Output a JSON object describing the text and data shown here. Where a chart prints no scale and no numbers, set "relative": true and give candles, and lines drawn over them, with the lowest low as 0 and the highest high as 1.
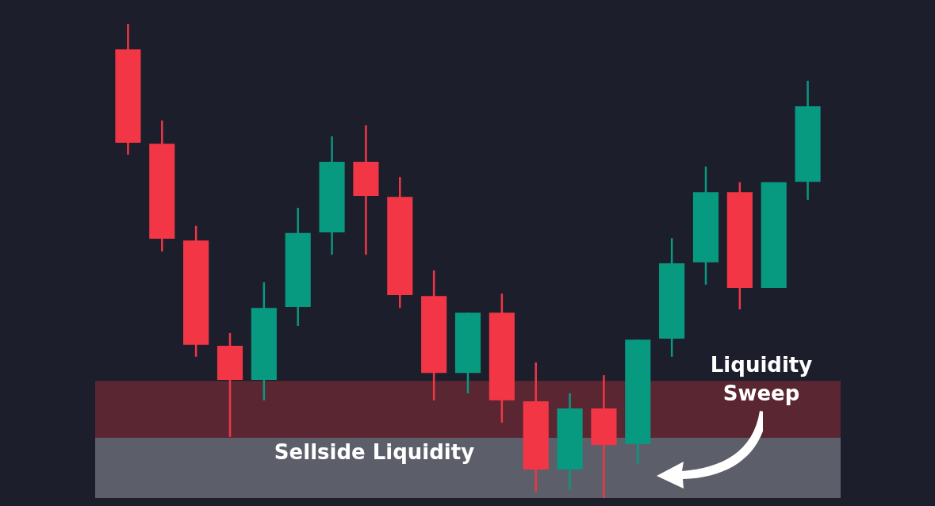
{
  "chart_data": {
    "type": "candlestick",
    "relative": true,
    "categories": [
      null,
      null,
      null,
      null,
      null,
      null,
      null,
      null,
      null,
      null,
      null,
      null,
      null,
      null,
      null,
      null,
      null,
      null,
      null,
      null,
      null
    ],
    "ohlc": [
      [
        0.946,
        1,
        0.724,
        0.749
      ],
      [
        0.747,
        0.796,
        0.52,
        0.547
      ],
      [
        0.543,
        0.574,
        0.298,
        0.323
      ],
      [
        0.321,
        0.348,
        0.129,
        0.249
      ],
      [
        0.249,
        0.455,
        0.206,
        0.401
      ],
      [
        0.403,
        0.612,
        0.363,
        0.559
      ],
      [
        0.56,
        0.763,
        0.513,
        0.709
      ],
      [
        0.709,
        0.786,
        0.513,
        0.637
      ],
      [
        0.635,
        0.677,
        0.401,
        0.428
      ],
      [
        0.426,
        0.48,
        0.206,
        0.264
      ],
      [
        0.264,
        0.391,
        0.221,
        0.391
      ],
      [
        0.391,
        0.431,
        0.159,
        0.206
      ],
      [
        0.204,
        0.286,
        0.013,
        0.06
      ],
      [
        0.06,
        0.221,
        0.018,
        0.189
      ],
      [
        0.189,
        0.259,
        0,
        0.112
      ],
      [
        0.114,
        0.334,
        0.072,
        0.334
      ],
      [
        0.336,
        0.548,
        0.298,
        0.495
      ],
      [
        0.497,
        0.699,
        0.45,
        0.645
      ],
      [
        0.645,
        0.666,
        0.398,
        0.443
      ],
      [
        0.443,
        0.666,
        0.443,
        0.666
      ],
      [
        0.667,
        0.88,
        0.629,
        0.826
      ]
    ],
    "colors": [
      "#f23645",
      "#f23645",
      "#f23645",
      "#f23645",
      "#089981",
      "#089981",
      "#089981",
      "#f23645",
      "#f23645",
      "#f23645",
      "#089981",
      "#f23645",
      "#f23645",
      "#089981",
      "#f23645",
      "#089981",
      "#089981",
      "#089981",
      "#f23645",
      "#089981",
      "#089981"
    ],
    "bands": [
      {
        "axis": "y",
        "from": 0.127,
        "to": 0.247,
        "label": "Sellside Liquidity",
        "color": "#5a2631"
      },
      {
        "axis": "y",
        "from": 0,
        "to": 0.127,
        "label": "Liquidity Sweep",
        "color": "#5c5f6a"
      }
    ],
    "legend": false
  }
}
